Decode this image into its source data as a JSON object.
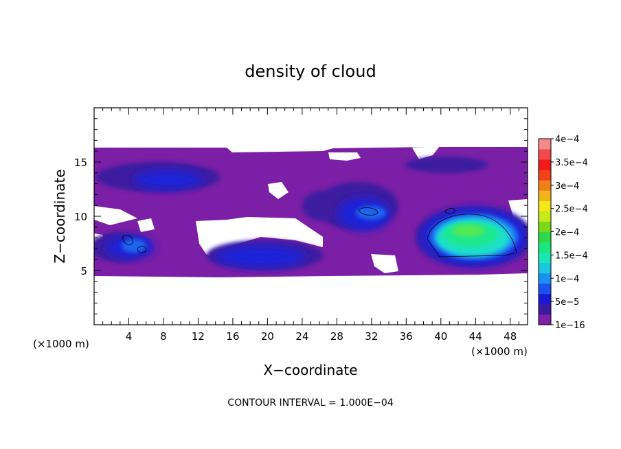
{
  "chart_data": {
    "type": "heatmap",
    "title": "density of cloud",
    "xlabel": "X−coordinate",
    "ylabel": "Z−coordinate",
    "x_unit_left": "(×1000 m)",
    "x_unit_right": "(×1000 m)",
    "xlim": [
      0,
      50
    ],
    "ylim": [
      0,
      20
    ],
    "x_ticks": [
      4,
      8,
      12,
      16,
      20,
      24,
      28,
      32,
      36,
      40,
      44,
      48
    ],
    "x_tick_labels": [
      "4",
      "8",
      "12",
      "16",
      "20",
      "24",
      "28",
      "32",
      "36",
      "40",
      "44",
      "48"
    ],
    "y_ticks": [
      5,
      10,
      15
    ],
    "y_tick_labels": [
      "5",
      "10",
      "15"
    ],
    "colorbar": {
      "labels": [
        "1e−16",
        "5e−5",
        "1e−4",
        "1.5e−4",
        "2e−4",
        "2.5e−4",
        "3e−4",
        "3.5e−4",
        "4e−4"
      ],
      "colors": [
        "#7f1fa8",
        "#3b1c9e",
        "#1a1ad6",
        "#1a52ee",
        "#1a90f0",
        "#1ac6e0",
        "#1ae8b4",
        "#1ae87c",
        "#2ed84a",
        "#7ad81a",
        "#c8e81a",
        "#f2e81a",
        "#f2b41a",
        "#f2801a",
        "#f2401a",
        "#f21a1a",
        "#f24a4a",
        "#f28a8a"
      ]
    },
    "regions": [
      {
        "x": [
          1,
          5
        ],
        "z": [
          7,
          8.2
        ],
        "level": 4
      },
      {
        "x": [
          8,
          12
        ],
        "z": [
          12.5,
          14
        ],
        "level": 3
      },
      {
        "x": [
          15,
          24
        ],
        "z": [
          5.5,
          8
        ],
        "level": 3
      },
      {
        "x": [
          27,
          34
        ],
        "z": [
          9,
          11
        ],
        "level": 4
      },
      {
        "x": [
          39,
          49
        ],
        "z": [
          6.5,
          10.5
        ],
        "level": 8
      }
    ],
    "footer": "CONTOUR INTERVAL = 1.000E−04"
  }
}
